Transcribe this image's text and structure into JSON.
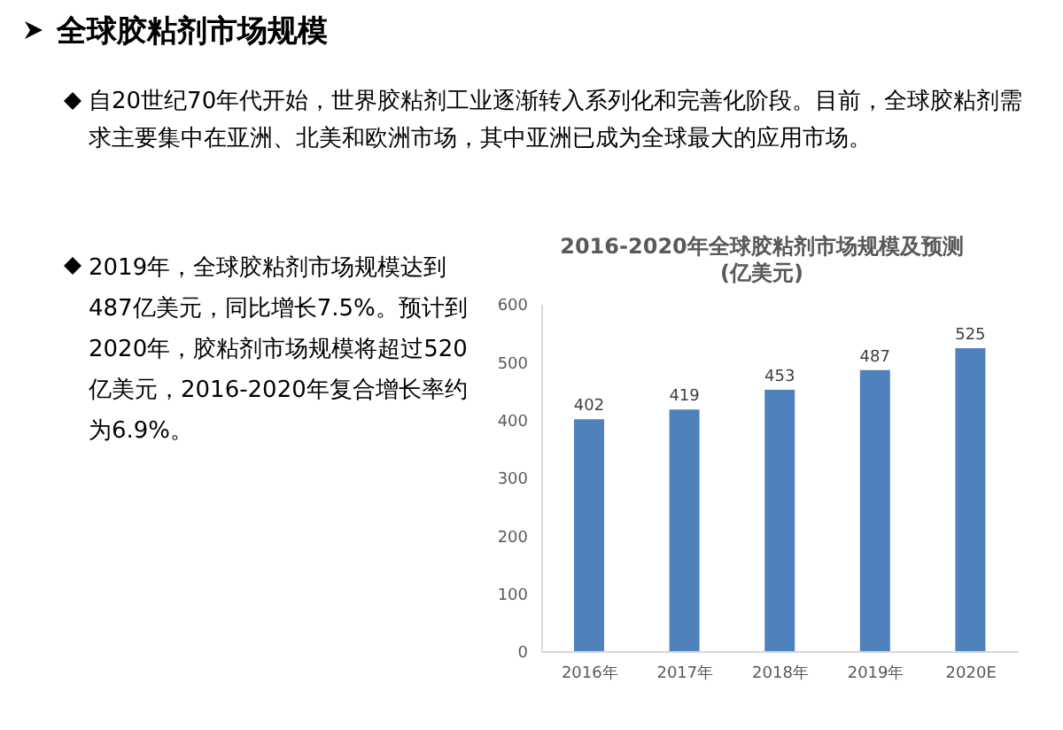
{
  "chart_data": {
    "type": "bar",
    "title": "2016-2020年全球胶粘剂市场规模及预测\n(亿美元)",
    "annotations": [
      "全球胶粘剂市场规模",
      "自20世纪70年代开始，世界胶粘剂工业逐渐转入系列化和完善化阶段。目前，全球胶粘剂需求主要集中在亚洲、北美和欧洲市场，其中亚洲已成为全球最大的应用市场。",
      "2019年，全球胶粘剂市场规模达到487亿美元，同比增长7.5%。预计到2020年，胶粘剂市场规模将超过520亿美元，2016-2020年复合增长率约为6.9%。"
    ],
    "categories": [
      "2016年",
      "2017年",
      "2018年",
      "2019年",
      "2020E"
    ],
    "values": [
      402,
      419,
      453,
      487,
      525
    ],
    "color": "#4f81bd",
    "ylim": [
      0,
      600
    ],
    "yticks": [
      0,
      100,
      200,
      300,
      400,
      500,
      600
    ],
    "data_labels": true
  }
}
